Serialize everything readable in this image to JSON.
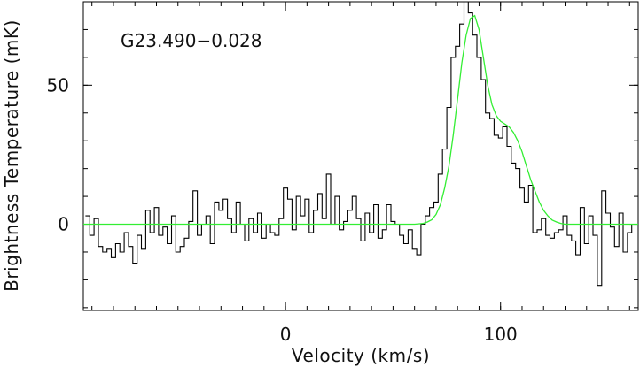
{
  "chart_data": {
    "type": "line",
    "title": "",
    "annotation": "G23.490−0.028",
    "xlabel": "Velocity (km/s)",
    "ylabel": "Brightness Temperature (mK)",
    "xlim": [
      -94,
      164
    ],
    "ylim": [
      -31,
      80
    ],
    "x_ticks": [
      {
        "value": 0,
        "label": "0"
      },
      {
        "value": 100,
        "label": "100"
      }
    ],
    "y_ticks": [
      {
        "value": 0,
        "label": "0"
      },
      {
        "value": 50,
        "label": "50"
      }
    ],
    "x_minor_step": 10,
    "y_minor_step": 10,
    "grid": false,
    "colors": {
      "spectrum": "#000000",
      "fit": "#33ee33",
      "frame": "#000000"
    },
    "series": [
      {
        "style": "step",
        "x": [
          -92,
          -90,
          -88,
          -86,
          -84,
          -82,
          -80,
          -78,
          -76,
          -74,
          -72,
          -70,
          -68,
          -66,
          -64,
          -62,
          -60,
          -58,
          -56,
          -54,
          -52,
          -50,
          -48,
          -46,
          -44,
          -42,
          -40,
          -38,
          -36,
          -34,
          -32,
          -30,
          -28,
          -26,
          -24,
          -22,
          -20,
          -18,
          -16,
          -14,
          -12,
          -10,
          -8,
          -6,
          -4,
          -2,
          0,
          2,
          4,
          6,
          8,
          10,
          12,
          14,
          16,
          18,
          20,
          22,
          24,
          26,
          28,
          30,
          32,
          34,
          36,
          38,
          40,
          42,
          44,
          46,
          48,
          50,
          52,
          54,
          56,
          58,
          60,
          62,
          64,
          66,
          68,
          70,
          72,
          74,
          76,
          78,
          80,
          82,
          84,
          86,
          88,
          90,
          92,
          94,
          96,
          98,
          100,
          102,
          104,
          106,
          108,
          110,
          112,
          114,
          116,
          118,
          120,
          122,
          124,
          126,
          128,
          130,
          132,
          134,
          136,
          138,
          140,
          142,
          144,
          146,
          148,
          150,
          152,
          154,
          156,
          158,
          160,
          162
        ],
        "y": [
          3,
          -4,
          2,
          -8,
          -10,
          -9,
          -12,
          -7,
          -10,
          -3,
          -8,
          -14,
          -4,
          -9,
          5,
          -3,
          6,
          -4,
          -1,
          -7,
          3,
          -10,
          -8,
          -5,
          1,
          12,
          -4,
          0,
          3,
          -7,
          8,
          5,
          9,
          2,
          -3,
          8,
          0,
          -6,
          2,
          -3,
          4,
          -5,
          0,
          -3,
          -4,
          2,
          13,
          9,
          -2,
          10,
          3,
          9,
          -3,
          5,
          11,
          2,
          18,
          0,
          10,
          -2,
          1,
          5,
          10,
          2,
          -6,
          4,
          -3,
          7,
          -5,
          -2,
          7,
          1,
          0,
          -4,
          -7,
          -2,
          -9,
          -11,
          0,
          3,
          6,
          8,
          18,
          27,
          42,
          60,
          64,
          72,
          80,
          76,
          68,
          60,
          52,
          40,
          38,
          32,
          31,
          35,
          28,
          22,
          20,
          13,
          8,
          14,
          -3,
          -2,
          2,
          -4,
          -5,
          -3,
          -2,
          3,
          -4,
          -6,
          -11,
          6,
          -7,
          3,
          -4,
          -22,
          12,
          4,
          -1,
          -8,
          4,
          -10,
          -3,
          0
        ],
        "name": ""
      },
      {
        "style": "line",
        "x": [
          -94,
          -80,
          -60,
          -40,
          -20,
          0,
          20,
          40,
          60,
          64,
          66,
          68,
          70,
          72,
          74,
          76,
          78,
          80,
          82,
          84,
          86,
          88,
          90,
          92,
          94,
          96,
          98,
          100,
          102,
          104,
          106,
          108,
          110,
          112,
          114,
          116,
          118,
          120,
          122,
          124,
          126,
          128,
          130,
          140,
          150,
          164
        ],
        "y": [
          0,
          0,
          0,
          0,
          0,
          0,
          0,
          0,
          0,
          0.3,
          0.8,
          1.6,
          3.5,
          7,
          13,
          21,
          32,
          45,
          58,
          68,
          74,
          75,
          70,
          60,
          50,
          43,
          39,
          37,
          36,
          35,
          33,
          30,
          26,
          21,
          16,
          12,
          8,
          5,
          3,
          1.5,
          0.8,
          0.3,
          0,
          0,
          0,
          0
        ],
        "name": ""
      }
    ]
  }
}
